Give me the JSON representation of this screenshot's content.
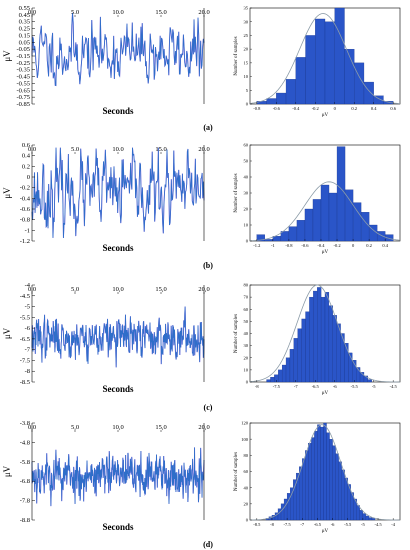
{
  "colors": {
    "signal": "#2f6ec9",
    "signal_dark": "#24408f",
    "highlight": "#e000ff",
    "bar": "#2a55c8",
    "bar_edge": "#17338a",
    "curve": "#8c9ca8",
    "frame": "#000000"
  },
  "chart_data": [
    {
      "panel": "(a)",
      "type": "line",
      "xlabel": "Seconds",
      "ylabel": "μV",
      "ylim": [
        -0.85,
        0.55
      ],
      "yticks": [
        "0.55",
        "0.45",
        "0.35",
        "0.25",
        "0.15",
        "0.05",
        "-0.05",
        "-0.15",
        "-0.25",
        "-0.35",
        "-0.45",
        "-0.55",
        "-0.65",
        "-0.75",
        "-0.85"
      ],
      "xlim": [
        0,
        20
      ],
      "xticks": [
        "0.0",
        "5.0",
        "10.0",
        "15.0",
        "20.0"
      ],
      "signal": {
        "mean": -0.1,
        "noise_std": 0.2,
        "min": -0.8,
        "max": 0.5,
        "samples": 260,
        "seed": 11
      }
    },
    {
      "panel": "(a)",
      "type": "bar",
      "xlabel": "μV",
      "ylabel": "Number of samples",
      "ylim": [
        0,
        35
      ],
      "yticks": [
        "0",
        "5",
        "10",
        "15",
        "20",
        "25",
        "30",
        "35"
      ],
      "xticks": [
        "-0.8",
        "-0.6",
        "-0.4",
        "-0.2",
        "0",
        "0.2",
        "0.4",
        "0.6"
      ],
      "bin_edges": [
        -0.8,
        -0.7,
        -0.6,
        -0.5,
        -0.4,
        -0.3,
        -0.2,
        -0.1,
        0.0,
        0.1,
        0.2,
        0.3,
        0.4,
        0.5,
        0.6
      ],
      "counts": [
        1,
        2,
        4,
        9,
        17,
        25,
        31,
        30,
        35,
        20,
        15,
        8,
        3,
        1
      ],
      "fit": {
        "mean": -0.12,
        "sd": 0.24,
        "peak": 33
      }
    },
    {
      "panel": "(b)",
      "type": "line",
      "xlabel": "Seconds",
      "ylabel": "μV",
      "ylim": [
        -1.2,
        0.6
      ],
      "yticks": [
        "0.6",
        "0.4",
        "0.2",
        "0",
        "-0.2",
        "-0.4",
        "-0.6",
        "-0.8",
        "-1",
        "-1.2"
      ],
      "xlim": [
        0,
        20
      ],
      "xticks": [
        "0.0",
        "5.0",
        "10.0",
        "15.0",
        "20.0"
      ],
      "signal": {
        "mean": -0.3,
        "noise_std": 0.32,
        "min": -1.15,
        "max": 0.55,
        "samples": 280,
        "seed": 23
      }
    },
    {
      "panel": "(b)",
      "type": "bar",
      "xlabel": "μV",
      "ylabel": "Number of samples",
      "ylim": [
        0,
        60
      ],
      "yticks": [
        "0",
        "10",
        "20",
        "30",
        "40",
        "50",
        "60"
      ],
      "xticks": [
        "-1.2",
        "-1",
        "-0.8",
        "-0.6",
        "-0.4",
        "-0.2",
        "0",
        "0.2",
        "0.4"
      ],
      "bin_edges": [
        -1.2,
        -1.1,
        -1.0,
        -0.9,
        -0.8,
        -0.7,
        -0.6,
        -0.5,
        -0.4,
        -0.3,
        -0.2,
        -0.1,
        0.0,
        0.1,
        0.2,
        0.3,
        0.4,
        0.5
      ],
      "counts": [
        4,
        1,
        3,
        6,
        9,
        13,
        20,
        26,
        35,
        30,
        59,
        32,
        24,
        18,
        10,
        6,
        4
      ],
      "fit": {
        "mean": -0.3,
        "sd": 0.3,
        "peak": 37
      }
    },
    {
      "panel": "(c)",
      "type": "line",
      "xlabel": "Seconds",
      "ylabel": "μV",
      "ylim": [
        -8.5,
        -4
      ],
      "yticks": [
        "-4",
        "-4.5",
        "-5",
        "-5.5",
        "-6",
        "-6.5",
        "-7",
        "-7.5",
        "-8",
        "-8.5"
      ],
      "xlim": [
        0,
        20
      ],
      "xticks": [
        "0,0",
        "5,0",
        "10,0",
        "15,0",
        "20,0"
      ],
      "signal": {
        "mean": -6.45,
        "noise_std": 0.42,
        "min": -7.9,
        "max": -5.0,
        "samples": 520,
        "seed": 37
      }
    },
    {
      "panel": "(c)",
      "type": "bar",
      "xlabel": "μV",
      "ylabel": "Number of samples",
      "ylim": [
        0,
        80
      ],
      "yticks": [
        "0",
        "10",
        "20",
        "30",
        "40",
        "50",
        "60",
        "70",
        "80"
      ],
      "xticks": [
        "-8",
        "-7.5",
        "-7",
        "-6.5",
        "-6",
        "-5.5",
        "-5",
        "-4.5"
      ],
      "bin_edges": [
        -7.75,
        -7.65,
        -7.55,
        -7.45,
        -7.35,
        -7.25,
        -7.15,
        -7.05,
        -6.95,
        -6.85,
        -6.75,
        -6.65,
        -6.55,
        -6.45,
        -6.35,
        -6.25,
        -6.15,
        -6.05,
        -5.95,
        -5.85,
        -5.75,
        -5.65,
        -5.55,
        -5.45,
        -5.35,
        -5.25,
        -5.15,
        -5.05
      ],
      "counts": [
        2,
        4,
        6,
        10,
        14,
        20,
        27,
        36,
        44,
        52,
        58,
        70,
        75,
        78,
        70,
        74,
        63,
        55,
        48,
        40,
        32,
        24,
        18,
        12,
        8,
        5,
        2
      ],
      "fit": {
        "mean": -6.45,
        "sd": 0.52,
        "peak": 80
      }
    },
    {
      "panel": "(d)",
      "type": "line",
      "xlabel": "Seconds",
      "ylabel": "μV",
      "ylim": [
        -8.8,
        -3.8
      ],
      "yticks": [
        "-3.8",
        "-4.8",
        "-5.8",
        "-6.8",
        "-7.8",
        "-8.8"
      ],
      "xlim": [
        0,
        20
      ],
      "xticks": [
        "0,0",
        "5,0",
        "10,0",
        "15,0",
        "20,0"
      ],
      "signal": {
        "mean": -6.5,
        "noise_std": 0.5,
        "min": -8.2,
        "max": -4.6,
        "samples": 620,
        "seed": 53
      }
    },
    {
      "panel": "(d)",
      "type": "bar",
      "xlabel": "μV",
      "ylabel": "Number of samples",
      "ylim": [
        0,
        120
      ],
      "yticks": [
        "0",
        "20",
        "40",
        "60",
        "80",
        "100",
        "120"
      ],
      "xticks": [
        "-8.5",
        "-8",
        "-7.5",
        "-7",
        "-6.5",
        "-6",
        "-5.5",
        "-5",
        "-4.5",
        "-4"
      ],
      "bin_edges": [
        -8.2,
        -8.1,
        -8.0,
        -7.9,
        -7.8,
        -7.7,
        -7.6,
        -7.5,
        -7.4,
        -7.3,
        -7.2,
        -7.1,
        -7.0,
        -6.9,
        -6.8,
        -6.7,
        -6.6,
        -6.5,
        -6.4,
        -6.3,
        -6.2,
        -6.1,
        -6.0,
        -5.9,
        -5.8,
        -5.7,
        -5.6,
        -5.5,
        -5.4,
        -5.3,
        -5.2,
        -5.1,
        -5.0,
        -4.9,
        -4.8,
        -4.7,
        -4.6
      ],
      "counts": [
        2,
        4,
        6,
        9,
        14,
        20,
        26,
        33,
        40,
        50,
        58,
        66,
        76,
        86,
        95,
        102,
        110,
        118,
        115,
        120,
        108,
        100,
        92,
        82,
        72,
        62,
        52,
        44,
        34,
        26,
        18,
        12,
        8,
        5,
        3,
        2
      ],
      "fit": {
        "mean": -6.35,
        "sd": 0.62,
        "peak": 118
      }
    }
  ],
  "panel_labels": [
    "(a)",
    "(b)",
    "(c)",
    "(d)"
  ]
}
